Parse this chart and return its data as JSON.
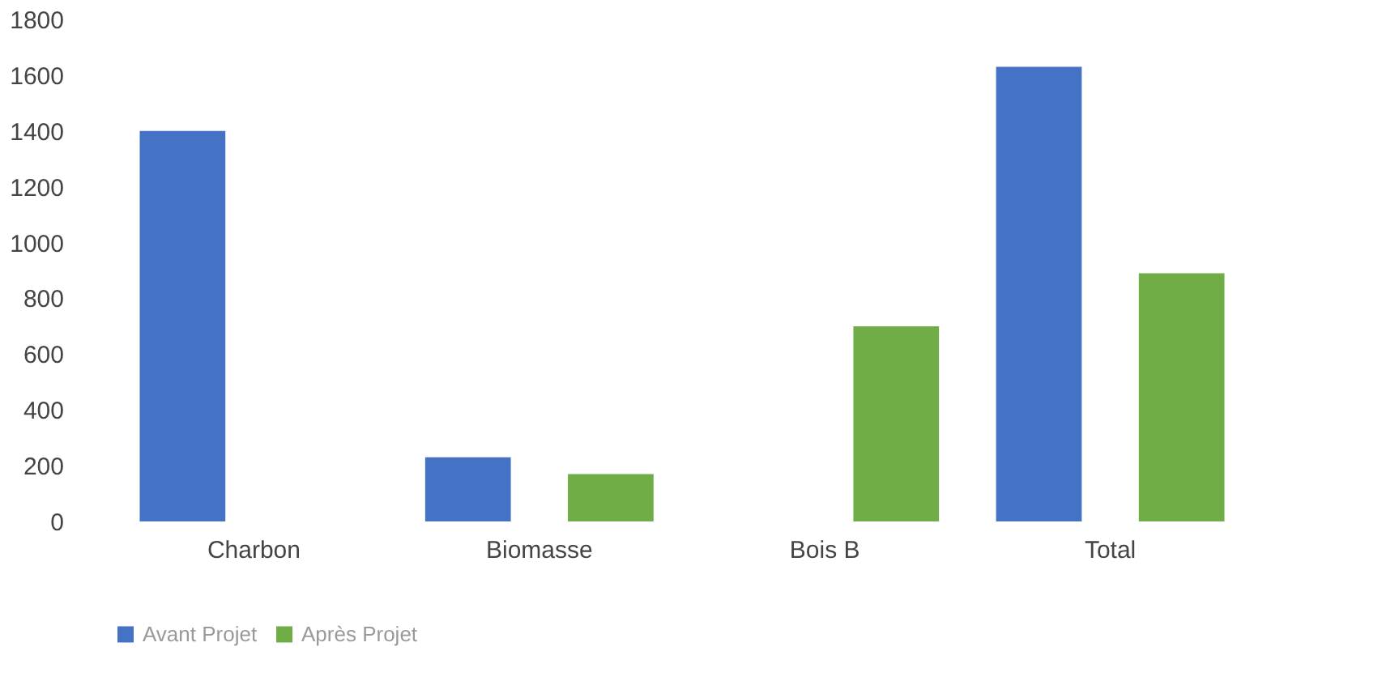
{
  "chart_data": {
    "type": "bar",
    "categories": [
      "Charbon",
      "Biomasse",
      "Bois B",
      "Total"
    ],
    "series": [
      {
        "name": "Avant Projet",
        "color": "#4472c4",
        "values": [
          1400,
          230,
          null,
          1630
        ]
      },
      {
        "name": "Après Projet",
        "color": "#70ad47",
        "values": [
          null,
          170,
          700,
          890
        ]
      }
    ],
    "ylim": [
      0,
      1800
    ],
    "yticks": [
      0,
      200,
      400,
      600,
      800,
      1000,
      1200,
      1400,
      1600,
      1800
    ],
    "grid": false,
    "legend": "bottom"
  }
}
